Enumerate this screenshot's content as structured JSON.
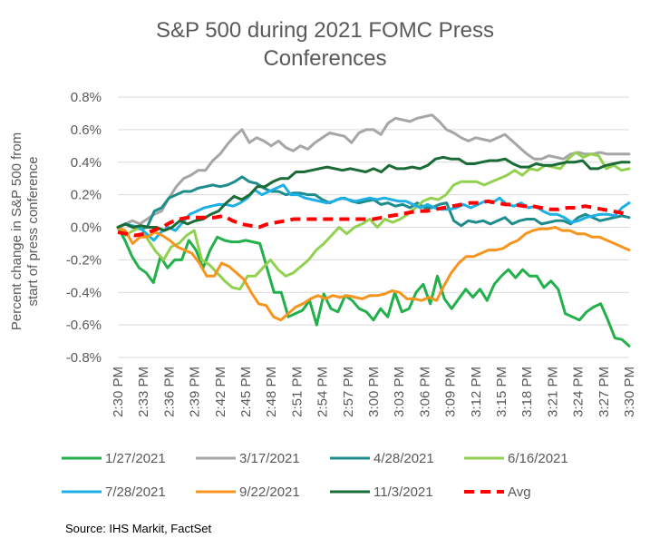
{
  "chart_data": {
    "type": "line",
    "title": "S&P 500 during 2021 FOMC Press\nConferences",
    "ylabel": "Percent change in S&P 500 from start of press conference",
    "xlabel": "",
    "ylim": [
      -0.8,
      0.8
    ],
    "yticks": [
      "0.8%",
      "0.6%",
      "0.4%",
      "0.2%",
      "0.0%",
      "-0.2%",
      "-0.4%",
      "-0.6%",
      "-0.8%"
    ],
    "ytick_values": [
      0.8,
      0.6,
      0.4,
      0.2,
      0.0,
      -0.2,
      -0.4,
      -0.6,
      -0.8
    ],
    "xticks": [
      "2:30 PM",
      "2:33 PM",
      "2:36 PM",
      "2:39 PM",
      "2:42 PM",
      "2:45 PM",
      "2:48 PM",
      "2:51 PM",
      "2:54 PM",
      "2:57 PM",
      "3:00 PM",
      "3:03 PM",
      "3:06 PM",
      "3:09 PM",
      "3:12 PM",
      "3:15 PM",
      "3:18 PM",
      "3:21 PM",
      "3:24 PM",
      "3:27 PM",
      "3:30 PM"
    ],
    "grid": true,
    "legend_position": "bottom",
    "source": "Source: IHS Markit, FactSet",
    "series": [
      {
        "name": "1/27/2021",
        "color": "#22b04b",
        "dashed": false,
        "values": [
          0.0,
          -0.08,
          -0.18,
          -0.25,
          -0.28,
          -0.34,
          -0.18,
          -0.25,
          -0.2,
          -0.2,
          -0.08,
          -0.14,
          -0.25,
          -0.14,
          -0.06,
          -0.08,
          -0.09,
          -0.09,
          -0.08,
          -0.09,
          -0.1,
          -0.25,
          -0.4,
          -0.4,
          -0.55,
          -0.53,
          -0.51,
          -0.45,
          -0.6,
          -0.41,
          -0.5,
          -0.52,
          -0.42,
          -0.45,
          -0.5,
          -0.52,
          -0.57,
          -0.5,
          -0.55,
          -0.4,
          -0.52,
          -0.5,
          -0.4,
          -0.35,
          -0.47,
          -0.3,
          -0.44,
          -0.5,
          -0.44,
          -0.38,
          -0.43,
          -0.38,
          -0.45,
          -0.35,
          -0.3,
          -0.26,
          -0.31,
          -0.26,
          -0.3,
          -0.3,
          -0.37,
          -0.33,
          -0.38,
          -0.53,
          -0.55,
          -0.57,
          -0.52,
          -0.49,
          -0.47,
          -0.57,
          -0.68,
          -0.69,
          -0.73
        ]
      },
      {
        "name": "3/17/2021",
        "color": "#a6a6a6",
        "dashed": false,
        "values": [
          0.0,
          0.02,
          0.04,
          0.02,
          0.05,
          0.08,
          0.1,
          0.18,
          0.25,
          0.3,
          0.32,
          0.35,
          0.35,
          0.41,
          0.45,
          0.51,
          0.56,
          0.6,
          0.52,
          0.55,
          0.53,
          0.5,
          0.53,
          0.49,
          0.47,
          0.5,
          0.48,
          0.52,
          0.55,
          0.58,
          0.57,
          0.56,
          0.52,
          0.58,
          0.6,
          0.6,
          0.57,
          0.64,
          0.67,
          0.66,
          0.65,
          0.67,
          0.68,
          0.69,
          0.65,
          0.6,
          0.58,
          0.55,
          0.53,
          0.55,
          0.54,
          0.53,
          0.55,
          0.57,
          0.53,
          0.49,
          0.45,
          0.42,
          0.42,
          0.44,
          0.43,
          0.42,
          0.45,
          0.46,
          0.45,
          0.45,
          0.46,
          0.45,
          0.45,
          0.45,
          0.45
        ]
      },
      {
        "name": "4/28/2021",
        "color": "#1f8c8c",
        "dashed": false,
        "values": [
          0.0,
          0.02,
          0.0,
          -0.01,
          0.0,
          0.1,
          0.12,
          0.18,
          0.2,
          0.22,
          0.22,
          0.24,
          0.25,
          0.26,
          0.25,
          0.26,
          0.28,
          0.31,
          0.28,
          0.27,
          0.24,
          0.22,
          0.22,
          0.2,
          0.21,
          0.21,
          0.2,
          0.2,
          0.17,
          0.15,
          0.17,
          0.18,
          0.16,
          0.15,
          0.16,
          0.17,
          0.14,
          0.15,
          0.13,
          0.14,
          0.12,
          0.15,
          0.12,
          0.12,
          0.14,
          0.15,
          0.04,
          0.01,
          0.04,
          0.03,
          0.04,
          0.02,
          0.04,
          0.06,
          0.02,
          0.04,
          0.05,
          0.05,
          0.02,
          0.03,
          0.04,
          0.04,
          0.02,
          0.06,
          0.08,
          0.06,
          0.04,
          0.05,
          0.06,
          0.07,
          0.06
        ]
      },
      {
        "name": "6/16/2021",
        "color": "#92d050",
        "dashed": false,
        "values": [
          0.0,
          -0.05,
          -0.02,
          0.0,
          -0.08,
          -0.15,
          -0.2,
          -0.12,
          -0.1,
          -0.05,
          -0.02,
          -0.2,
          -0.23,
          -0.28,
          -0.33,
          -0.37,
          -0.38,
          -0.3,
          -0.3,
          -0.25,
          -0.2,
          -0.26,
          -0.3,
          -0.28,
          -0.24,
          -0.2,
          -0.14,
          -0.1,
          -0.05,
          0.0,
          -0.04,
          0.0,
          0.02,
          0.05,
          0.0,
          0.05,
          0.03,
          0.05,
          0.08,
          0.12,
          0.16,
          0.18,
          0.17,
          0.2,
          0.26,
          0.28,
          0.28,
          0.28,
          0.26,
          0.28,
          0.3,
          0.32,
          0.35,
          0.32,
          0.36,
          0.35,
          0.38,
          0.37,
          0.36,
          0.42,
          0.46,
          0.43,
          0.45,
          0.44,
          0.36,
          0.38,
          0.35,
          0.36
        ]
      },
      {
        "name": "7/28/2021",
        "color": "#1eafe6",
        "dashed": false,
        "values": [
          0.0,
          0.02,
          0.01,
          0.0,
          -0.04,
          -0.08,
          -0.03,
          0.0,
          -0.02,
          0.03,
          0.08,
          0.1,
          0.12,
          0.13,
          0.14,
          0.14,
          0.13,
          0.15,
          0.18,
          0.23,
          0.2,
          0.22,
          0.24,
          0.26,
          0.2,
          0.2,
          0.18,
          0.17,
          0.16,
          0.15,
          0.16,
          0.18,
          0.17,
          0.16,
          0.17,
          0.18,
          0.17,
          0.18,
          0.17,
          0.16,
          0.16,
          0.14,
          0.12,
          0.14,
          0.12,
          0.11,
          0.11,
          0.12,
          0.14,
          0.12,
          0.14,
          0.16,
          0.15,
          0.18,
          0.14,
          0.13,
          0.15,
          0.12,
          0.13,
          0.1,
          0.08,
          0.08,
          0.06,
          0.03,
          0.04,
          0.06,
          0.07,
          0.08,
          0.08,
          0.07,
          0.12,
          0.15
        ]
      },
      {
        "name": "9/22/2021",
        "color": "#f7941d",
        "dashed": false,
        "values": [
          0.0,
          -0.02,
          -0.1,
          -0.06,
          -0.06,
          -0.03,
          -0.05,
          -0.08,
          -0.12,
          -0.14,
          -0.16,
          -0.22,
          -0.3,
          -0.3,
          -0.22,
          -0.24,
          -0.28,
          -0.32,
          -0.4,
          -0.47,
          -0.48,
          -0.55,
          -0.57,
          -0.53,
          -0.49,
          -0.47,
          -0.44,
          -0.42,
          -0.44,
          -0.42,
          -0.43,
          -0.42,
          -0.43,
          -0.44,
          -0.42,
          -0.42,
          -0.41,
          -0.39,
          -0.4,
          -0.44,
          -0.44,
          -0.45,
          -0.43,
          -0.45,
          -0.36,
          -0.28,
          -0.22,
          -0.18,
          -0.18,
          -0.16,
          -0.14,
          -0.14,
          -0.13,
          -0.1,
          -0.08,
          -0.04,
          -0.02,
          -0.01,
          -0.01,
          0.0,
          -0.02,
          -0.02,
          -0.04,
          -0.04,
          -0.06,
          -0.06,
          -0.08,
          -0.1,
          -0.12,
          -0.14
        ]
      },
      {
        "name": "11/3/2021",
        "color": "#1a6b35",
        "dashed": false,
        "values": [
          0.0,
          0.02,
          0.0,
          0.01,
          0.0,
          0.0,
          -0.02,
          0.0,
          0.04,
          0.02,
          0.04,
          0.05,
          0.08,
          0.1,
          0.15,
          0.19,
          0.17,
          0.2,
          0.25,
          0.25,
          0.28,
          0.3,
          0.3,
          0.34,
          0.34,
          0.35,
          0.36,
          0.37,
          0.36,
          0.35,
          0.36,
          0.35,
          0.34,
          0.36,
          0.34,
          0.38,
          0.36,
          0.36,
          0.37,
          0.36,
          0.38,
          0.42,
          0.43,
          0.42,
          0.42,
          0.39,
          0.39,
          0.4,
          0.41,
          0.41,
          0.42,
          0.39,
          0.37,
          0.37,
          0.39,
          0.38,
          0.38,
          0.39,
          0.4,
          0.4,
          0.41,
          0.36,
          0.36,
          0.38,
          0.39,
          0.4,
          0.4
        ]
      },
      {
        "name": "Avg",
        "color": "#ff0000",
        "dashed": true,
        "values": [
          -0.03,
          -0.04,
          -0.05,
          -0.04,
          -0.02,
          0.0,
          0.03,
          0.05,
          0.06,
          0.06,
          0.06,
          0.06,
          0.07,
          0.04,
          0.02,
          0.01,
          0.0,
          0.02,
          0.03,
          0.04,
          0.05,
          0.05,
          0.05,
          0.05,
          0.05,
          0.05,
          0.05,
          0.05,
          0.05,
          0.05,
          0.06,
          0.07,
          0.08,
          0.09,
          0.1,
          0.1,
          0.11,
          0.12,
          0.13,
          0.14,
          0.15,
          0.15,
          0.16,
          0.15,
          0.14,
          0.14,
          0.13,
          0.13,
          0.12,
          0.11,
          0.11,
          0.12,
          0.12,
          0.13,
          0.12,
          0.11,
          0.1,
          0.09,
          0.08
        ]
      }
    ]
  }
}
